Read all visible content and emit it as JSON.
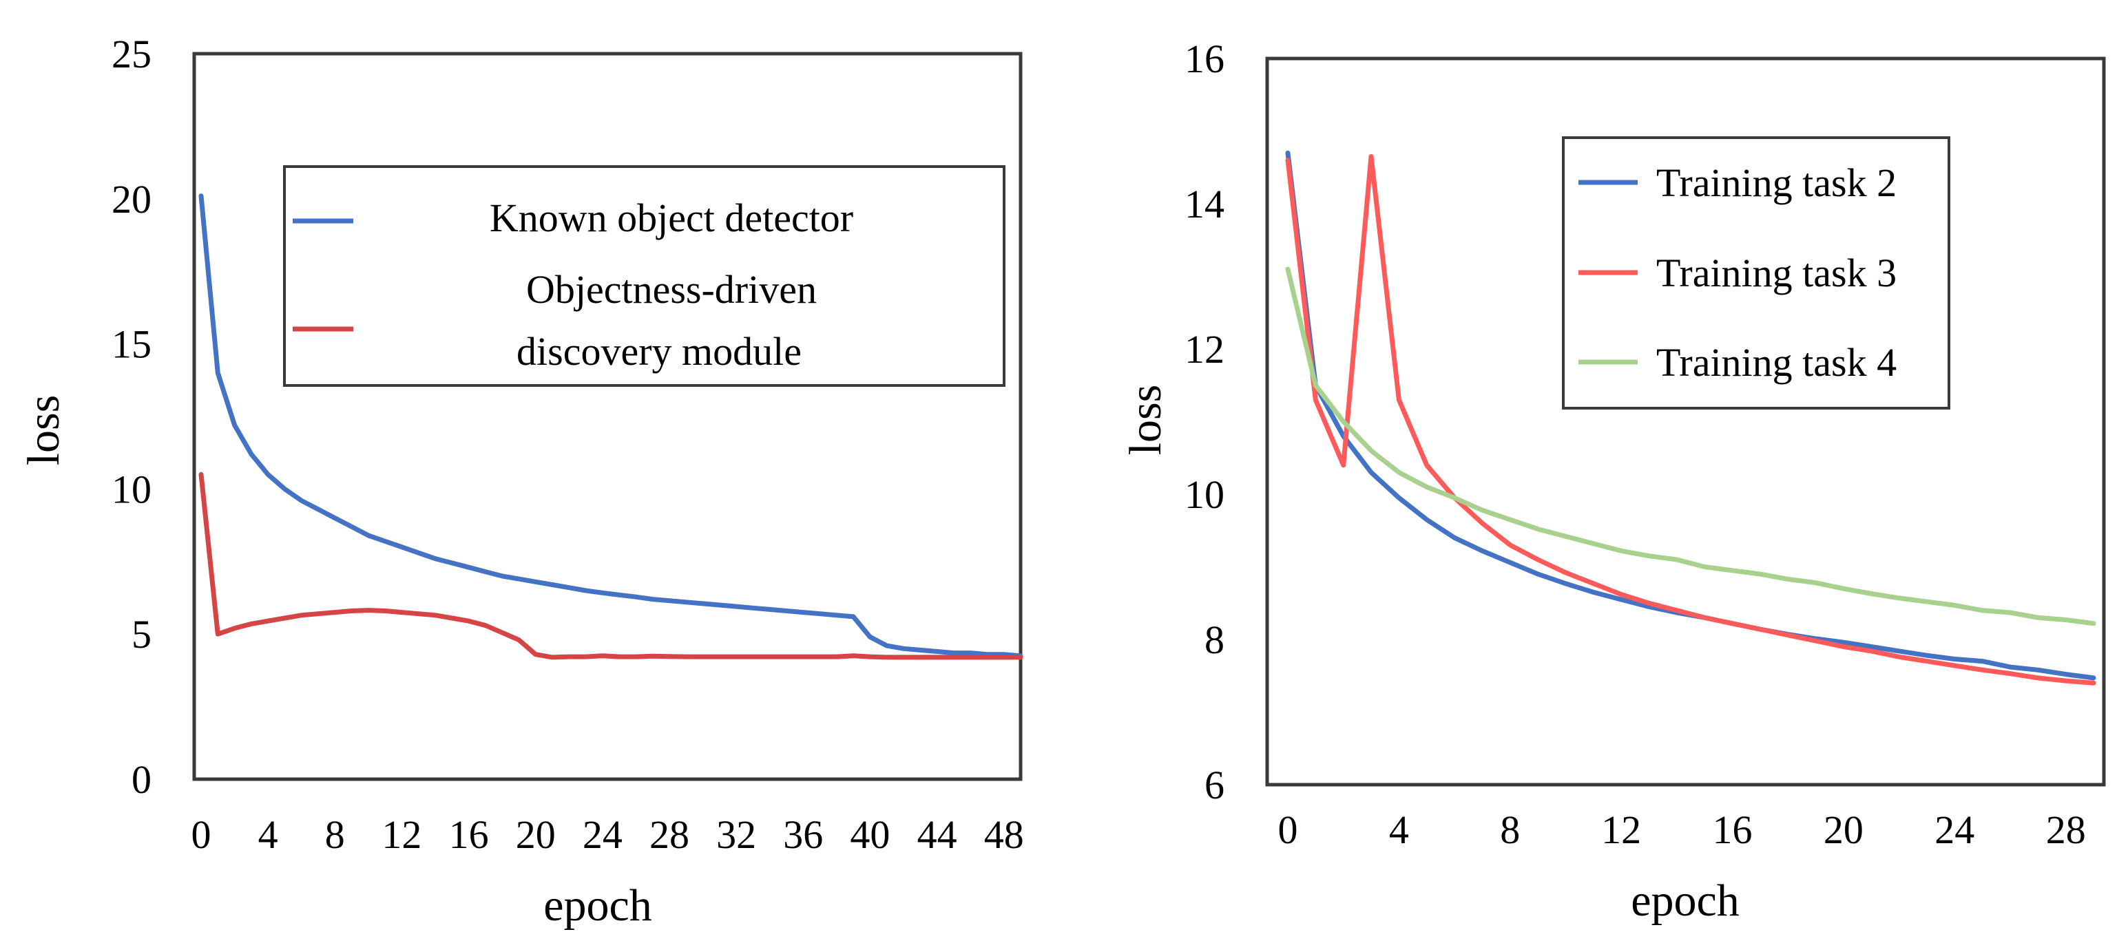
{
  "chart_data": [
    {
      "type": "line",
      "xlabel": "epoch",
      "ylabel": "loss",
      "xlim": [
        0,
        49
      ],
      "ylim": [
        0,
        25
      ],
      "xticks": [
        "0",
        "4",
        "8",
        "12",
        "16",
        "20",
        "24",
        "28",
        "32",
        "36",
        "40",
        "44",
        "48"
      ],
      "xtick_values": [
        0,
        4,
        8,
        12,
        16,
        20,
        24,
        28,
        32,
        36,
        40,
        44,
        48
      ],
      "yticks": [
        "0",
        "5",
        "10",
        "15",
        "20",
        "25"
      ],
      "ytick_values": [
        0,
        5,
        10,
        15,
        20,
        25
      ],
      "legend": [
        "Known object detector",
        "Objectness-driven",
        "discovery module"
      ],
      "series": [
        {
          "name": "Known object detector",
          "color": "#4472C4",
          "x": [
            0,
            1,
            2,
            3,
            4,
            5,
            6,
            7,
            8,
            9,
            10,
            11,
            12,
            13,
            14,
            15,
            16,
            17,
            18,
            19,
            20,
            21,
            22,
            23,
            24,
            25,
            26,
            27,
            28,
            29,
            30,
            31,
            32,
            33,
            34,
            35,
            36,
            37,
            38,
            39,
            40,
            41,
            42,
            43,
            44,
            45,
            46,
            47,
            48,
            49
          ],
          "y": [
            20.1,
            14.0,
            12.2,
            11.2,
            10.5,
            10.0,
            9.6,
            9.3,
            9.0,
            8.7,
            8.4,
            8.2,
            8.0,
            7.8,
            7.6,
            7.45,
            7.3,
            7.15,
            7.0,
            6.9,
            6.8,
            6.7,
            6.6,
            6.5,
            6.42,
            6.35,
            6.28,
            6.2,
            6.15,
            6.1,
            6.05,
            6.0,
            5.95,
            5.9,
            5.85,
            5.8,
            5.75,
            5.7,
            5.65,
            5.6,
            4.9,
            4.6,
            4.5,
            4.45,
            4.4,
            4.35,
            4.35,
            4.3,
            4.3,
            4.25
          ]
        },
        {
          "name": "Objectness-driven discovery module",
          "color": "#D64545",
          "x": [
            0,
            1,
            2,
            3,
            4,
            5,
            6,
            7,
            8,
            9,
            10,
            11,
            12,
            13,
            14,
            15,
            16,
            17,
            18,
            19,
            20,
            21,
            22,
            23,
            24,
            25,
            26,
            27,
            28,
            29,
            30,
            31,
            32,
            33,
            34,
            35,
            36,
            37,
            38,
            39,
            40,
            41,
            42,
            43,
            44,
            45,
            46,
            47,
            48,
            49
          ],
          "y": [
            10.5,
            5.0,
            5.2,
            5.35,
            5.45,
            5.55,
            5.65,
            5.7,
            5.75,
            5.8,
            5.82,
            5.8,
            5.75,
            5.7,
            5.65,
            5.55,
            5.45,
            5.3,
            5.05,
            4.8,
            4.3,
            4.2,
            4.22,
            4.22,
            4.25,
            4.22,
            4.22,
            4.24,
            4.23,
            4.22,
            4.22,
            4.22,
            4.22,
            4.22,
            4.22,
            4.22,
            4.22,
            4.22,
            4.22,
            4.25,
            4.22,
            4.2,
            4.2,
            4.2,
            4.2,
            4.2,
            4.2,
            4.2,
            4.2,
            4.2
          ]
        }
      ]
    },
    {
      "type": "line",
      "xlabel": "epoch",
      "ylabel": "loss",
      "xlim": [
        0,
        29
      ],
      "ylim": [
        6,
        16
      ],
      "xticks": [
        "0",
        "4",
        "8",
        "12",
        "16",
        "20",
        "24",
        "28"
      ],
      "xtick_values": [
        0,
        4,
        8,
        12,
        16,
        20,
        24,
        28
      ],
      "yticks": [
        "6",
        "8",
        "10",
        "12",
        "14",
        "16"
      ],
      "ytick_values": [
        6,
        8,
        10,
        12,
        14,
        16
      ],
      "legend": [
        "Training task 2",
        "Training task 3",
        "Training task 4"
      ],
      "series": [
        {
          "name": "Training task 2",
          "color": "#4472C4",
          "x": [
            0,
            1,
            2,
            3,
            4,
            5,
            6,
            7,
            8,
            9,
            10,
            11,
            12,
            13,
            14,
            15,
            16,
            17,
            18,
            19,
            20,
            21,
            22,
            23,
            24,
            25,
            26,
            27,
            28,
            29
          ],
          "y": [
            14.7,
            11.5,
            10.8,
            10.3,
            9.95,
            9.65,
            9.4,
            9.22,
            9.06,
            8.9,
            8.77,
            8.65,
            8.55,
            8.45,
            8.37,
            8.3,
            8.22,
            8.14,
            8.07,
            8.01,
            7.96,
            7.9,
            7.84,
            7.78,
            7.73,
            7.7,
            7.62,
            7.58,
            7.52,
            7.47
          ]
        },
        {
          "name": "Training task 3",
          "color": "#FF5A5A",
          "x": [
            0,
            1,
            2,
            3,
            4,
            5,
            6,
            7,
            8,
            9,
            10,
            11,
            12,
            13,
            14,
            15,
            16,
            17,
            18,
            19,
            20,
            21,
            22,
            23,
            24,
            25,
            26,
            27,
            28,
            29
          ],
          "y": [
            14.6,
            11.3,
            10.4,
            14.65,
            11.3,
            10.4,
            9.95,
            9.6,
            9.3,
            9.1,
            8.92,
            8.77,
            8.62,
            8.5,
            8.4,
            8.3,
            8.22,
            8.14,
            8.06,
            7.98,
            7.9,
            7.84,
            7.76,
            7.7,
            7.64,
            7.58,
            7.53,
            7.47,
            7.43,
            7.4
          ]
        },
        {
          "name": "Training task 4",
          "color": "#A9D18E",
          "x": [
            0,
            1,
            2,
            3,
            4,
            5,
            6,
            7,
            8,
            9,
            10,
            11,
            12,
            13,
            14,
            15,
            16,
            17,
            18,
            19,
            20,
            21,
            22,
            23,
            24,
            25,
            26,
            27,
            28,
            29
          ],
          "y": [
            13.1,
            11.5,
            11.0,
            10.6,
            10.3,
            10.1,
            9.95,
            9.78,
            9.65,
            9.52,
            9.42,
            9.32,
            9.22,
            9.15,
            9.1,
            9.0,
            8.95,
            8.9,
            8.83,
            8.78,
            8.7,
            8.63,
            8.57,
            8.52,
            8.47,
            8.4,
            8.37,
            8.3,
            8.27,
            8.22
          ]
        }
      ]
    }
  ]
}
